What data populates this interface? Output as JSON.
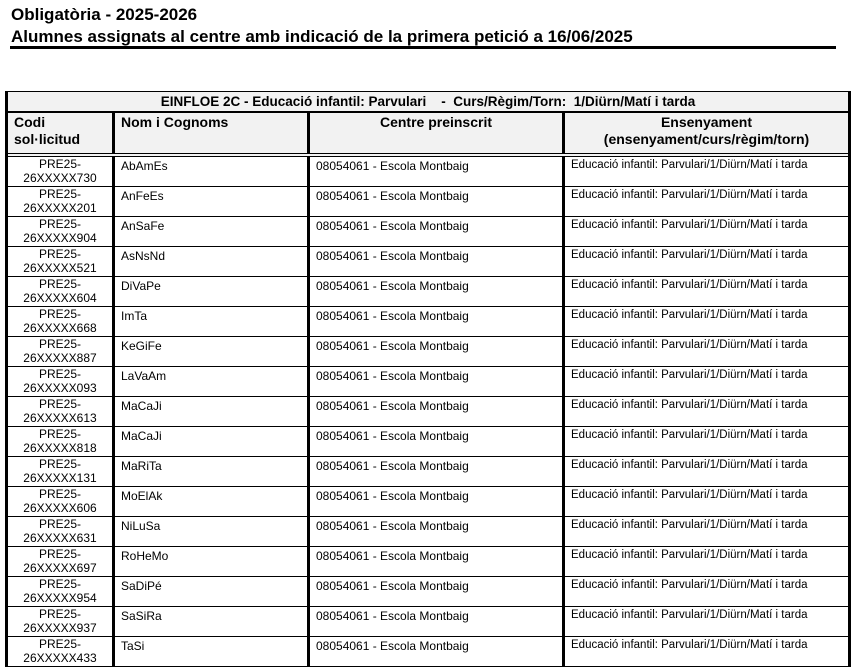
{
  "header": {
    "title": "Obligatòria - 2025-2026",
    "subtitle": "Alumnes assignats al centre amb indicació de la primera petició a 16/06/2025"
  },
  "table": {
    "group_title": "EINFLOE 2C - Educació infantil: Parvulari    -  Curs/Règim/Torn:  1/Diürn/Matí i tarda",
    "columns": [
      {
        "line1": "Codi",
        "line2": "sol·licitud"
      },
      {
        "line1": "Nom i Cognoms",
        "line2": ""
      },
      {
        "line1": "Centre preinscrit",
        "line2": ""
      },
      {
        "line1": "Ensenyament",
        "line2": "(ensenyament/curs/règim/torn)"
      }
    ],
    "rows": [
      {
        "code1": "PRE25-",
        "code2": "26XXXXX730",
        "name": "AbAmEs",
        "centre": "08054061 - Escola Montbaig",
        "ens": "Educació infantil: Parvulari/1/Diürn/Matí i tarda"
      },
      {
        "code1": "PRE25-",
        "code2": "26XXXXX201",
        "name": "AnFeEs",
        "centre": "08054061 - Escola Montbaig",
        "ens": "Educació infantil: Parvulari/1/Diürn/Matí i tarda"
      },
      {
        "code1": "PRE25-",
        "code2": "26XXXXX904",
        "name": "AnSaFe",
        "centre": "08054061 - Escola Montbaig",
        "ens": "Educació infantil: Parvulari/1/Diürn/Matí i tarda"
      },
      {
        "code1": "PRE25-",
        "code2": "26XXXXX521",
        "name": "AsNsNd",
        "centre": "08054061 - Escola Montbaig",
        "ens": "Educació infantil: Parvulari/1/Diürn/Matí i tarda"
      },
      {
        "code1": "PRE25-",
        "code2": "26XXXXX604",
        "name": "DiVaPe",
        "centre": "08054061 - Escola Montbaig",
        "ens": "Educació infantil: Parvulari/1/Diürn/Matí i tarda"
      },
      {
        "code1": "PRE25-",
        "code2": "26XXXXX668",
        "name": "ImTa",
        "centre": "08054061 - Escola Montbaig",
        "ens": "Educació infantil: Parvulari/1/Diürn/Matí i tarda"
      },
      {
        "code1": "PRE25-",
        "code2": "26XXXXX887",
        "name": "KeGiFe",
        "centre": "08054061 - Escola Montbaig",
        "ens": "Educació infantil: Parvulari/1/Diürn/Matí i tarda"
      },
      {
        "code1": "PRE25-",
        "code2": "26XXXXX093",
        "name": "LaVaAm",
        "centre": "08054061 - Escola Montbaig",
        "ens": "Educació infantil: Parvulari/1/Diürn/Matí i tarda"
      },
      {
        "code1": "PRE25-",
        "code2": "26XXXXX613",
        "name": "MaCaJi",
        "centre": "08054061 - Escola Montbaig",
        "ens": "Educació infantil: Parvulari/1/Diürn/Matí i tarda"
      },
      {
        "code1": "PRE25-",
        "code2": "26XXXXX818",
        "name": "MaCaJi",
        "centre": "08054061 - Escola Montbaig",
        "ens": "Educació infantil: Parvulari/1/Diürn/Matí i tarda"
      },
      {
        "code1": "PRE25-",
        "code2": "26XXXXX131",
        "name": "MaRiTa",
        "centre": "08054061 - Escola Montbaig",
        "ens": "Educació infantil: Parvulari/1/Diürn/Matí i tarda"
      },
      {
        "code1": "PRE25-",
        "code2": "26XXXXX606",
        "name": "MoElAk",
        "centre": "08054061 - Escola Montbaig",
        "ens": "Educació infantil: Parvulari/1/Diürn/Matí i tarda"
      },
      {
        "code1": "PRE25-",
        "code2": "26XXXXX631",
        "name": "NiLuSa",
        "centre": "08054061 - Escola Montbaig",
        "ens": "Educació infantil: Parvulari/1/Diürn/Matí i tarda"
      },
      {
        "code1": "PRE25-",
        "code2": "26XXXXX697",
        "name": "RoHeMo",
        "centre": "08054061 - Escola Montbaig",
        "ens": "Educació infantil: Parvulari/1/Diürn/Matí i tarda"
      },
      {
        "code1": "PRE25-",
        "code2": "26XXXXX954",
        "name": "SaDiPé",
        "centre": "08054061 - Escola Montbaig",
        "ens": "Educació infantil: Parvulari/1/Diürn/Matí i tarda"
      },
      {
        "code1": "PRE25-",
        "code2": "26XXXXX937",
        "name": "SaSiRa",
        "centre": "08054061 - Escola Montbaig",
        "ens": "Educació infantil: Parvulari/1/Diürn/Matí i tarda"
      },
      {
        "code1": "PRE25-",
        "code2": "26XXXXX433",
        "name": "TaSi",
        "centre": "08054061 - Escola Montbaig",
        "ens": "Educació infantil: Parvulari/1/Diürn/Matí i tarda"
      }
    ]
  }
}
